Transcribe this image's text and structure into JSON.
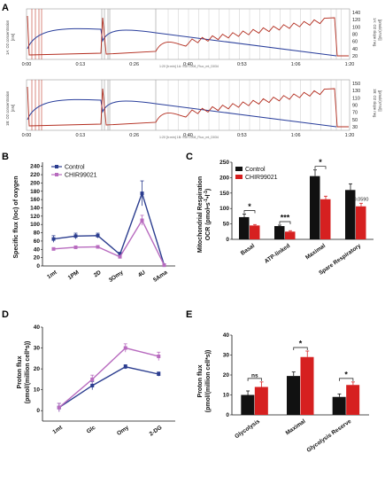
{
  "panel_labels": {
    "a": "A",
    "b": "B",
    "c": "C",
    "d": "D",
    "e": "E"
  },
  "chart_data": [
    {
      "id": "A_top",
      "type": "line",
      "left_axis_label": "1A: O2 concentration",
      "left_axis_unit": "[nM]",
      "right_axis_label": "1A: O2 slope neg.",
      "right_axis_unit": "[pmol/(s*ml)]",
      "x_ticks": [
        "0:00",
        "0:13",
        "0:26",
        "0:40",
        "0:53",
        "1:06",
        "1:20"
      ],
      "right_ticks": [
        "140",
        "120",
        "100",
        "80",
        "60",
        "40",
        "20"
      ],
      "footer": "1:20 [h:min]  1A: SUIT-008_Fluo_mt_D034",
      "colors": {
        "concentration": "#2a3f9c",
        "flux": "#b32d1f"
      }
    },
    {
      "id": "A_bottom",
      "type": "line",
      "left_axis_label": "1B: O2 concentration",
      "left_axis_unit": "[nM]",
      "right_axis_label": "1B: O2 slope neg.",
      "right_axis_unit": "[pmol/(s*ml)]",
      "x_ticks": [
        "0:00",
        "0:13",
        "0:26",
        "0:40",
        "0:53",
        "1:06",
        "1:20"
      ],
      "right_ticks": [
        "150",
        "130",
        "110",
        "90",
        "70",
        "50",
        "30"
      ],
      "footer": "1:20 [h:min]  1B: SUIT-008_Fluo_mt_D034",
      "colors": {
        "concentration": "#2a3f9c",
        "flux": "#b32d1f"
      }
    },
    {
      "id": "B",
      "type": "line",
      "ylabel": "Specific flux (Ioc) of oxygen",
      "ylim": [
        0,
        250
      ],
      "yticks": [
        0,
        20,
        40,
        60,
        80,
        100,
        120,
        140,
        160,
        180,
        200,
        220,
        240
      ],
      "categories": [
        "1mt",
        "1PM",
        "2D",
        "3Omy",
        "4U",
        "5Ama"
      ],
      "series": [
        {
          "name": "Control",
          "color": "#2b3d8f",
          "marker": "square",
          "values": [
            65,
            72,
            73,
            28,
            175,
            2
          ],
          "errors": [
            8,
            7,
            6,
            5,
            30,
            1
          ]
        },
        {
          "name": "CHIR99021",
          "color": "#b86bbf",
          "marker": "square",
          "values": [
            41,
            45,
            46,
            22,
            110,
            2
          ],
          "errors": [
            3,
            3,
            3,
            3,
            12,
            1
          ]
        }
      ]
    },
    {
      "id": "C",
      "type": "bar",
      "ylabel_line1": "Mitochondrial Respiration",
      "ylabel_line2": "OCR (pmol•s",
      "ylabel_sup1": "-1",
      "ylabel_mid": "•l",
      "ylabel_sup2": "-1",
      "ylabel_end": ")",
      "ylim": [
        0,
        250
      ],
      "yticks": [
        0,
        50,
        100,
        150,
        200,
        250
      ],
      "categories": [
        "Basal",
        "ATP-linked",
        "Maximal",
        "Spare Respiratory"
      ],
      "series": [
        {
          "name": "Control",
          "color": "#111111",
          "values": [
            72,
            43,
            205,
            160
          ],
          "errors": [
            10,
            3,
            20,
            20
          ]
        },
        {
          "name": "CHIR99021",
          "color": "#d62020",
          "values": [
            45,
            25,
            130,
            107
          ],
          "errors": [
            3,
            3,
            10,
            10
          ]
        }
      ],
      "significance": [
        "*",
        "***",
        "*",
        "0.0590"
      ]
    },
    {
      "id": "D",
      "type": "line",
      "ylabel_line1": "Proton flux",
      "ylabel_line2": "(pmol/(million cell*s))",
      "ylim": [
        -5,
        40
      ],
      "yticks": [
        0,
        10,
        20,
        30,
        40
      ],
      "categories": [
        "1mt",
        "Glc",
        "Omy",
        "2-DG"
      ],
      "series": [
        {
          "name": "Control",
          "color": "#2b3d8f",
          "marker": "square",
          "values": [
            1.5,
            12,
            21,
            17.5
          ],
          "errors": [
            2,
            2,
            1,
            1
          ]
        },
        {
          "name": "CHIR99021",
          "color": "#b86bbf",
          "marker": "square",
          "values": [
            1.5,
            15,
            30,
            26
          ],
          "errors": [
            2,
            2,
            2,
            2
          ]
        }
      ]
    },
    {
      "id": "E",
      "type": "bar",
      "ylabel_line1": "Proton flux",
      "ylabel_line2": "(pmol/(million cell*s))",
      "ylim": [
        0,
        40
      ],
      "yticks": [
        0,
        10,
        20,
        30,
        40
      ],
      "categories": [
        "Glycolysis",
        "Maximal",
        "Glycolysis Reserve"
      ],
      "series": [
        {
          "name": "Control",
          "color": "#111111",
          "values": [
            10,
            19.5,
            9
          ],
          "errors": [
            2,
            2,
            1.5
          ]
        },
        {
          "name": "CHIR99021",
          "color": "#d62020",
          "values": [
            14,
            29,
            15
          ],
          "errors": [
            2.5,
            3,
            1.5
          ]
        }
      ],
      "significance": [
        "ns",
        "*",
        "*"
      ]
    }
  ]
}
